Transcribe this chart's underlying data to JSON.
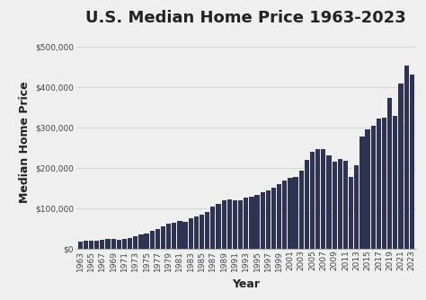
{
  "title": "U.S. Median Home Price 1963-2023",
  "xlabel": "Year",
  "ylabel": "Median Home Price",
  "bar_color": "#2e3354",
  "background_color": "#efefef",
  "plot_bg_color": "#efefef",
  "years": [
    1963,
    1964,
    1965,
    1966,
    1967,
    1968,
    1969,
    1970,
    1971,
    1972,
    1973,
    1974,
    1975,
    1976,
    1977,
    1978,
    1979,
    1980,
    1981,
    1982,
    1983,
    1984,
    1985,
    1986,
    1987,
    1988,
    1989,
    1990,
    1991,
    1992,
    1993,
    1994,
    1995,
    1996,
    1997,
    1998,
    1999,
    2000,
    2001,
    2002,
    2003,
    2004,
    2005,
    2006,
    2007,
    2008,
    2009,
    2010,
    2011,
    2012,
    2013,
    2014,
    2015,
    2016,
    2017,
    2018,
    2019,
    2020,
    2021,
    2022,
    2023
  ],
  "values": [
    18000,
    19300,
    20000,
    21400,
    22700,
    24000,
    25600,
    23400,
    25200,
    27600,
    32500,
    35800,
    39300,
    44200,
    48800,
    55700,
    62900,
    64600,
    68900,
    67800,
    75300,
    79900,
    84300,
    92000,
    104500,
    112500,
    120000,
    122900,
    120000,
    121500,
    126500,
    130000,
    133900,
    140000,
    145800,
    152500,
    161000,
    169000,
    175200,
    179200,
    195000,
    221000,
    240900,
    246500,
    247900,
    232100,
    216700,
    222900,
    217700,
    178600,
    208400,
    278500,
    296400,
    304500,
    323100,
    325000,
    374900,
    329900,
    408800,
    454700,
    431000
  ],
  "ylim": [
    0,
    530000
  ],
  "yticks": [
    0,
    100000,
    200000,
    300000,
    400000,
    500000
  ],
  "ytick_labels": [
    "$0",
    "$100,000",
    "$200,000",
    "$300,000",
    "$400,000",
    "$500,000"
  ],
  "title_fontsize": 13,
  "axis_label_fontsize": 9,
  "tick_fontsize": 6.5,
  "grid_color": "#d8d8d8"
}
